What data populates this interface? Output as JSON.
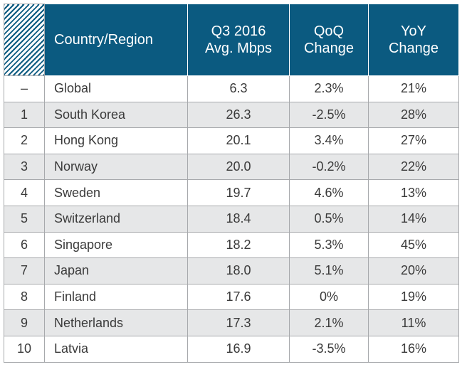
{
  "table": {
    "header": [
      "Country/Region",
      "Q3 2016\nAvg. Mbps",
      "QoQ\nChange",
      "YoY\nChange"
    ],
    "rows": [
      [
        "–",
        "Global",
        "6.3",
        "2.3%",
        "21%"
      ],
      [
        "1",
        "South Korea",
        "26.3",
        "-2.5%",
        "28%"
      ],
      [
        "2",
        "Hong Kong",
        "20.1",
        "3.4%",
        "27%"
      ],
      [
        "3",
        "Norway",
        "20.0",
        "-0.2%",
        "22%"
      ],
      [
        "4",
        "Sweden",
        "19.7",
        "4.6%",
        "13%"
      ],
      [
        "5",
        "Switzerland",
        "18.4",
        "0.5%",
        "14%"
      ],
      [
        "6",
        "Singapore",
        "18.2",
        "5.3%",
        "45%"
      ],
      [
        "7",
        "Japan",
        "18.0",
        "5.1%",
        "20%"
      ],
      [
        "8",
        "Finland",
        "17.6",
        "0%",
        "19%"
      ],
      [
        "9",
        "Netherlands",
        "17.3",
        "2.1%",
        "11%"
      ],
      [
        "10",
        "Latvia",
        "16.9",
        "-3.5%",
        "16%"
      ]
    ]
  }
}
